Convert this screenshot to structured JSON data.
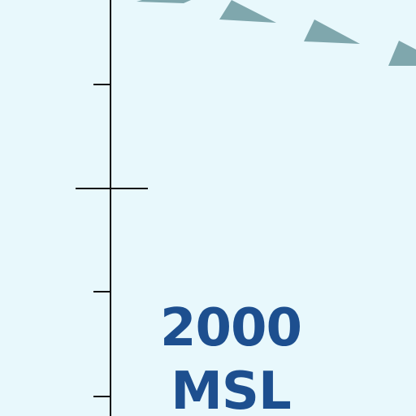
{
  "colors": {
    "background": "#e8f8fc",
    "line": "#111111",
    "boundary_teeth": "#7fa7ad",
    "label": "#1d4f8f"
  },
  "features": {
    "boundary_line": "special-use-airspace-boundary-teeth",
    "scale_line": "vertical-line-with-tick-marks"
  },
  "altitude_label": {
    "value": "2000",
    "unit": "MSL"
  }
}
